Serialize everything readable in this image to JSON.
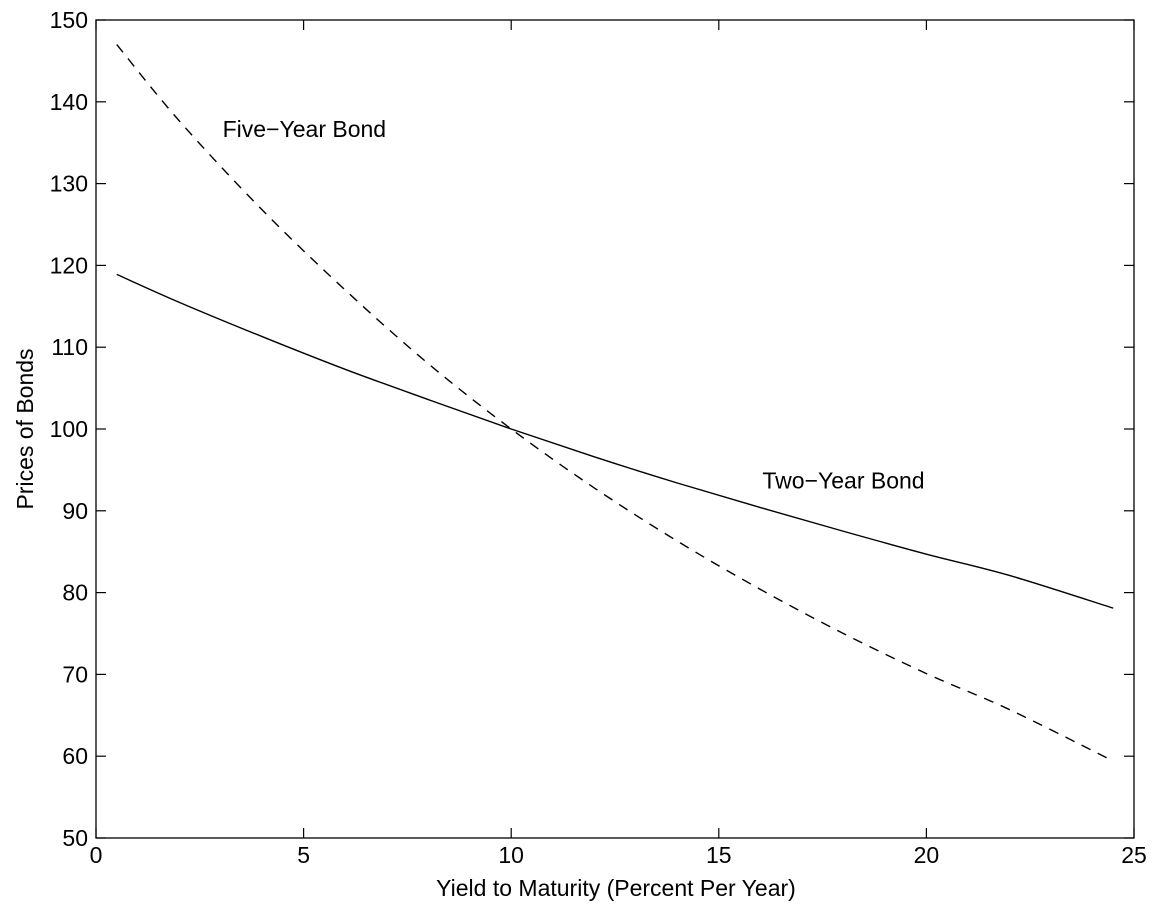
{
  "chart_data": {
    "type": "line",
    "title": "",
    "xlabel": "Yield to Maturity (Percent Per Year)",
    "ylabel": "Prices of Bonds",
    "xlim": [
      0,
      25
    ],
    "ylim": [
      50,
      150
    ],
    "xticks": [
      "0",
      "5",
      "10",
      "15",
      "20",
      "25"
    ],
    "yticks": [
      "50",
      "60",
      "70",
      "80",
      "90",
      "100",
      "110",
      "120",
      "130",
      "140",
      "150"
    ],
    "xtick_values": [
      0,
      5,
      10,
      15,
      20,
      25
    ],
    "ytick_values": [
      50,
      60,
      70,
      80,
      90,
      100,
      110,
      120,
      130,
      140,
      150
    ],
    "grid": false,
    "legend": "none",
    "x": [
      0.5,
      2,
      4,
      6,
      8,
      10,
      12,
      14,
      16,
      18,
      20,
      22,
      24.5
    ],
    "series": [
      {
        "name": "Two−Year Bond",
        "style": "solid",
        "color": "#000000",
        "values": [
          118.9,
          115.5,
          111.3,
          107.3,
          103.6,
          100.0,
          96.6,
          93.4,
          90.4,
          87.5,
          84.7,
          82.1,
          78.1
        ]
      },
      {
        "name": "Five−Year Bond",
        "style": "dashed",
        "color": "#000000",
        "values": [
          147.0,
          137.7,
          126.8,
          117.0,
          108.0,
          100.0,
          92.8,
          86.3,
          80.4,
          75.0,
          70.1,
          65.7,
          59.4
        ]
      }
    ],
    "annotations": [
      {
        "text": "Five−Year Bond",
        "x": 3.05,
        "y": 135.7
      },
      {
        "text": "Two−Year Bond",
        "x": 16.05,
        "y": 92.7
      }
    ]
  }
}
